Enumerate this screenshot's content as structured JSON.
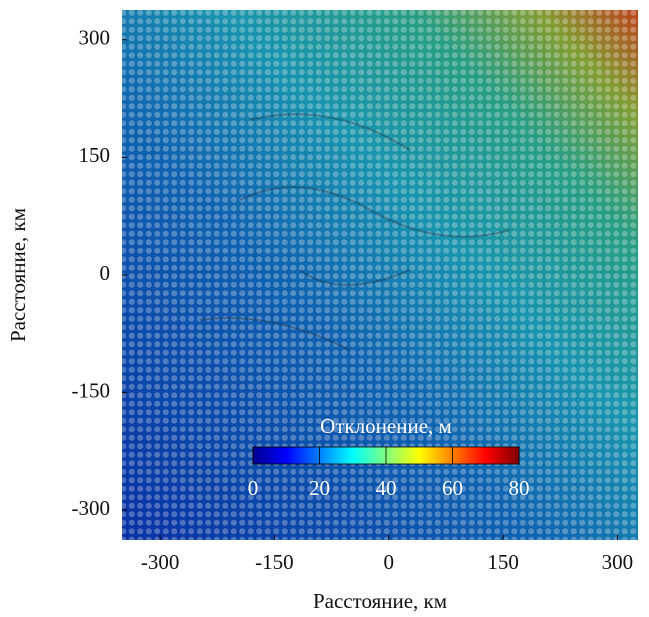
{
  "chart_data": {
    "type": "heatmap",
    "x_label": "Расстояние, км",
    "y_label": "Расстояние, км",
    "xlim": [
      -350,
      327
    ],
    "ylim": [
      -338,
      338
    ],
    "xticks": [
      -300,
      -150,
      0,
      150,
      300
    ],
    "yticks": [
      -300,
      -150,
      0,
      150,
      300
    ],
    "colorbar": {
      "label": "Отклонение, м",
      "lim": [
        0,
        80
      ],
      "ticks": [
        0,
        20,
        40,
        60,
        80
      ]
    }
  }
}
